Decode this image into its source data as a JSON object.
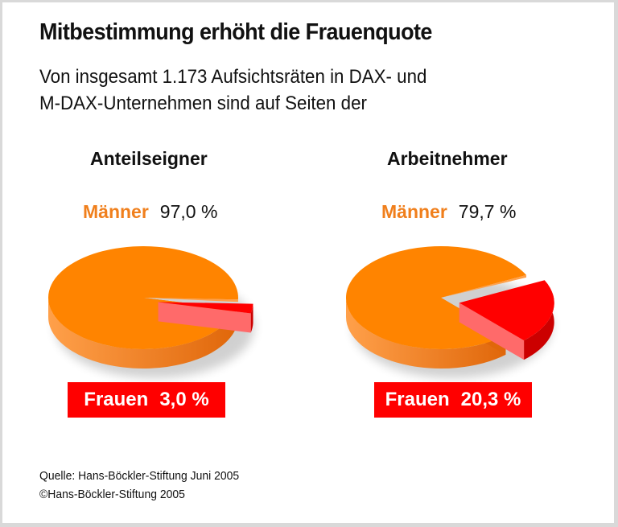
{
  "title": "Mitbestimmung erhöht die Frauenquote",
  "subtitle_lines": [
    "Von insgesamt 1.173 Aufsichtsräten in DAX- und",
    "M-DAX-Unternehmen sind auf Seiten der"
  ],
  "colors": {
    "men": "#ff8400",
    "men_side_light": "#ffa04a",
    "men_side_dark": "#e0670a",
    "women": "#ff0000",
    "women_side_light": "#ff6a6a",
    "women_side_dark": "#cc0000",
    "men_label": "#f07f1c",
    "women_box": "#ff0000"
  },
  "chart_data": [
    {
      "type": "pie",
      "title": "Anteilseigner",
      "slices": [
        {
          "label": "Männer",
          "value": 97.0,
          "display": "97,0 %"
        },
        {
          "label": "Frauen",
          "value": 3.0,
          "display": "3,0 %",
          "exploded": true
        }
      ]
    },
    {
      "type": "pie",
      "title": "Arbeitnehmer",
      "slices": [
        {
          "label": "Männer",
          "value": 79.7,
          "display": "79,7 %"
        },
        {
          "label": "Frauen",
          "value": 20.3,
          "display": "20,3 %",
          "exploded": true
        }
      ]
    }
  ],
  "footer": {
    "source": "Quelle: Hans-Böckler-Stiftung Juni 2005",
    "copyright": "©Hans-Böckler-Stiftung 2005"
  }
}
